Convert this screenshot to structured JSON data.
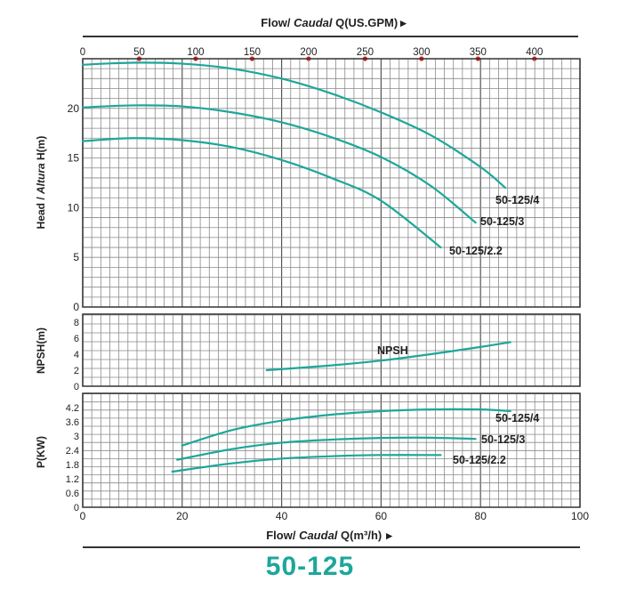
{
  "top_axis": {
    "label_prefix": "Flow/ ",
    "label_italic": "Caudal",
    "label_suffix": " Q(US.GPM)",
    "arrow": "▸",
    "ticks": [
      "0",
      "50",
      "100",
      "150",
      "200",
      "250",
      "300",
      "350",
      "400"
    ],
    "marker_color": "#e02020"
  },
  "bottom_axis": {
    "label_prefix": "Flow/ ",
    "label_italic": "Caudal",
    "label_suffix": " Q(m³/h)",
    "arrow": "▸",
    "ticks": [
      "0",
      "20",
      "40",
      "60",
      "80",
      "100"
    ]
  },
  "model_title": "50-125",
  "colors": {
    "curve": "#1ca79a",
    "grid": "#8a8a8a",
    "frame": "#333333"
  },
  "chart_data": [
    {
      "type": "line",
      "panel": "head",
      "ylabel_prefix": "Head / ",
      "ylabel_italic": "Altura",
      "ylabel_suffix": " H(m)",
      "xlim": [
        0,
        100
      ],
      "ylim": [
        0,
        25
      ],
      "yticks": [
        "0",
        "5",
        "10",
        "15",
        "20"
      ],
      "series": [
        {
          "name": "50-125/4",
          "x": [
            0,
            10,
            20,
            30,
            40,
            50,
            60,
            70,
            80,
            85
          ],
          "y": [
            24.4,
            24.6,
            24.5,
            24.0,
            23.0,
            21.5,
            19.6,
            17.3,
            14.1,
            12.0
          ]
        },
        {
          "name": "50-125/3",
          "x": [
            0,
            10,
            20,
            30,
            40,
            50,
            60,
            70,
            79
          ],
          "y": [
            20.1,
            20.3,
            20.2,
            19.6,
            18.6,
            17.1,
            15.1,
            12.2,
            8.5
          ]
        },
        {
          "name": "50-125/2.2",
          "x": [
            0,
            10,
            20,
            30,
            40,
            50,
            60,
            72
          ],
          "y": [
            16.7,
            17.0,
            16.8,
            16.1,
            14.8,
            13.0,
            10.7,
            6.0
          ]
        }
      ]
    },
    {
      "type": "line",
      "panel": "npsh",
      "ylabel": "NPSH(m)",
      "xlim": [
        0,
        100
      ],
      "ylim": [
        0,
        9
      ],
      "yticks": [
        "0",
        "2",
        "4",
        "6",
        "8"
      ],
      "series": [
        {
          "name": "NPSH",
          "x": [
            37,
            50,
            60,
            70,
            80,
            86
          ],
          "y": [
            2.0,
            2.6,
            3.2,
            4.0,
            4.9,
            5.5
          ]
        }
      ]
    },
    {
      "type": "line",
      "panel": "power",
      "ylabel": "P(KW)",
      "xlim": [
        0,
        100
      ],
      "ylim": [
        0,
        4.8
      ],
      "yticks": [
        "0",
        "0.6",
        "1.2",
        "1.8",
        "2.4",
        "3",
        "3.6",
        "4.2"
      ],
      "series": [
        {
          "name": "50-125/4",
          "x": [
            20,
            30,
            40,
            50,
            60,
            70,
            80,
            86
          ],
          "y": [
            2.6,
            3.25,
            3.65,
            3.9,
            4.05,
            4.12,
            4.12,
            4.05
          ]
        },
        {
          "name": "50-125/3",
          "x": [
            19,
            30,
            40,
            50,
            60,
            70,
            79
          ],
          "y": [
            2.0,
            2.45,
            2.72,
            2.85,
            2.92,
            2.93,
            2.88
          ]
        },
        {
          "name": "50-125/2.2",
          "x": [
            18,
            30,
            40,
            50,
            60,
            72
          ],
          "y": [
            1.5,
            1.85,
            2.05,
            2.15,
            2.2,
            2.2
          ]
        }
      ]
    }
  ]
}
